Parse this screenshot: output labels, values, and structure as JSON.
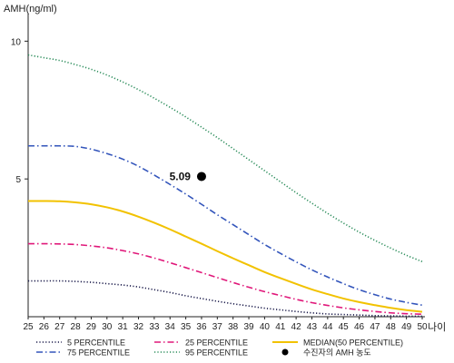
{
  "chart_data": {
    "type": "line",
    "title": "",
    "ylabel": "AMH(ng/ml)",
    "xlabel": "나이",
    "x": [
      25,
      26,
      27,
      28,
      29,
      30,
      31,
      32,
      33,
      34,
      35,
      36,
      37,
      38,
      39,
      40,
      41,
      42,
      43,
      44,
      45,
      46,
      47,
      48,
      49,
      50
    ],
    "xlim": [
      25,
      50
    ],
    "ylim": [
      0,
      11
    ],
    "yticks": [
      5,
      10
    ],
    "grid": false,
    "legend_position": "bottom",
    "series": [
      {
        "name": "5 PERCENTILE",
        "color": "#1a1a4a",
        "dash": "dotted",
        "values": [
          1.3,
          1.3,
          1.3,
          1.28,
          1.25,
          1.2,
          1.15,
          1.08,
          0.98,
          0.88,
          0.76,
          0.66,
          0.56,
          0.47,
          0.39,
          0.31,
          0.25,
          0.19,
          0.14,
          0.1,
          0.08,
          0.06,
          0.04,
          0.03,
          0.02,
          0.02
        ]
      },
      {
        "name": "25 PERCENTILE",
        "color": "#e0187a",
        "dash": "dash-dot",
        "values": [
          2.65,
          2.65,
          2.64,
          2.62,
          2.57,
          2.5,
          2.4,
          2.28,
          2.13,
          1.96,
          1.78,
          1.6,
          1.42,
          1.24,
          1.07,
          0.91,
          0.77,
          0.63,
          0.51,
          0.41,
          0.32,
          0.25,
          0.19,
          0.14,
          0.11,
          0.09
        ]
      },
      {
        "name": "MEDIAN(50 PERCENTILE)",
        "color": "#f2c200",
        "dash": "solid",
        "values": [
          4.2,
          4.2,
          4.19,
          4.15,
          4.08,
          3.97,
          3.82,
          3.63,
          3.41,
          3.17,
          2.91,
          2.65,
          2.38,
          2.12,
          1.87,
          1.62,
          1.4,
          1.19,
          0.99,
          0.82,
          0.66,
          0.53,
          0.42,
          0.32,
          0.24,
          0.18
        ]
      },
      {
        "name": "75 PERCENTILE",
        "color": "#3355bb",
        "dash": "dash-dot",
        "values": [
          6.2,
          6.2,
          6.2,
          6.18,
          6.08,
          5.92,
          5.72,
          5.46,
          5.14,
          4.8,
          4.45,
          4.08,
          3.7,
          3.34,
          2.98,
          2.62,
          2.3,
          1.99,
          1.7,
          1.44,
          1.2,
          0.98,
          0.8,
          0.64,
          0.52,
          0.42
        ]
      },
      {
        "name": "95 PERCENTILE",
        "color": "#2a8c5a",
        "dash": "dotted",
        "values": [
          9.5,
          9.4,
          9.3,
          9.15,
          8.98,
          8.77,
          8.52,
          8.24,
          7.93,
          7.6,
          7.25,
          6.88,
          6.5,
          6.1,
          5.7,
          5.3,
          4.9,
          4.5,
          4.12,
          3.75,
          3.4,
          3.07,
          2.77,
          2.49,
          2.23,
          2.0
        ]
      }
    ],
    "highlight_point": {
      "name": "수진자의 AMH 농도",
      "x": 36,
      "y": 5.09,
      "label": "5.09",
      "color": "#000000"
    }
  }
}
